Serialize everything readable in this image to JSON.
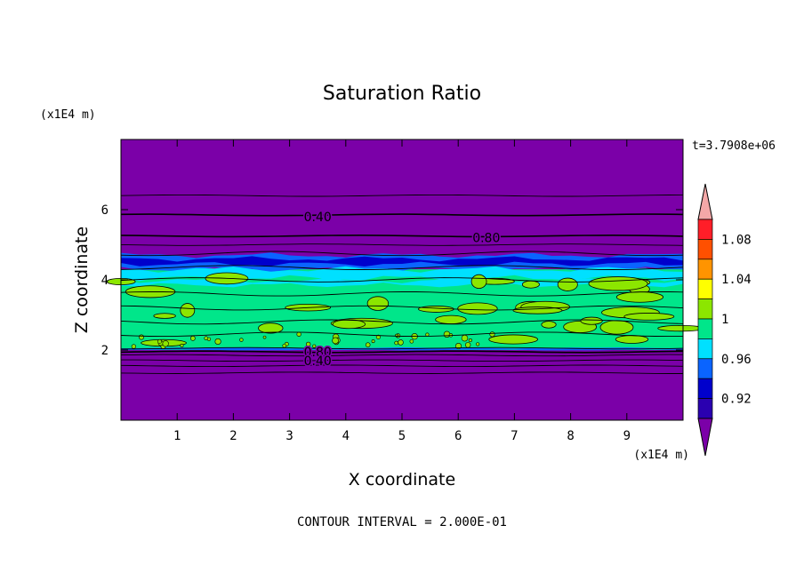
{
  "chart_data": {
    "type": "heatmap",
    "title": "Saturation Ratio",
    "xlabel": "X coordinate",
    "ylabel": "Z coordinate",
    "x_unit": "(x1E4 m)",
    "y_unit": "(x1E4 m)",
    "xlim": [
      0,
      10
    ],
    "ylim": [
      0,
      8
    ],
    "x_ticks": [
      "1",
      "2",
      "3",
      "4",
      "5",
      "6",
      "7",
      "8",
      "9"
    ],
    "y_ticks": [
      "2",
      "4",
      "6"
    ],
    "time_label": "t=3.7908e+06",
    "footer": "CONTOUR INTERVAL = 2.000E-01",
    "contour_labels": [
      {
        "text": "0.40",
        "x": 3.5,
        "z": 5.8
      },
      {
        "text": "0.80",
        "x": 6.5,
        "z": 5.2
      },
      {
        "text": "0.80",
        "x": 3.5,
        "z": 1.95
      },
      {
        "text": "0.40",
        "x": 3.5,
        "z": 1.7
      }
    ],
    "colorbar": {
      "tick_labels": [
        "0.92",
        "0.96",
        "1",
        "1.04",
        "1.08"
      ],
      "levels": [
        0.92,
        0.94,
        0.96,
        0.98,
        1.0,
        1.02,
        1.04,
        1.06,
        1.08
      ],
      "colors": [
        "#7b00a8",
        "#2a00b0",
        "#0000cc",
        "#0a64ff",
        "#00e0ff",
        "#00e68a",
        "#8ce600",
        "#ffff00",
        "#ff9400",
        "#ff5000",
        "#ff1e28",
        "#f4a8a8"
      ]
    },
    "bands": [
      {
        "z_from": 0,
        "z_to": 2.0,
        "value": "<0.92"
      },
      {
        "z_from": 2.0,
        "z_to": 3.2,
        "value": "0.98-1.02"
      },
      {
        "z_from": 3.2,
        "z_to": 4.3,
        "value": "0.98-1.02"
      },
      {
        "z_from": 4.3,
        "z_to": 4.7,
        "value": "0.92-0.98"
      },
      {
        "z_from": 4.7,
        "z_to": 8.0,
        "value": "<0.92"
      }
    ]
  }
}
